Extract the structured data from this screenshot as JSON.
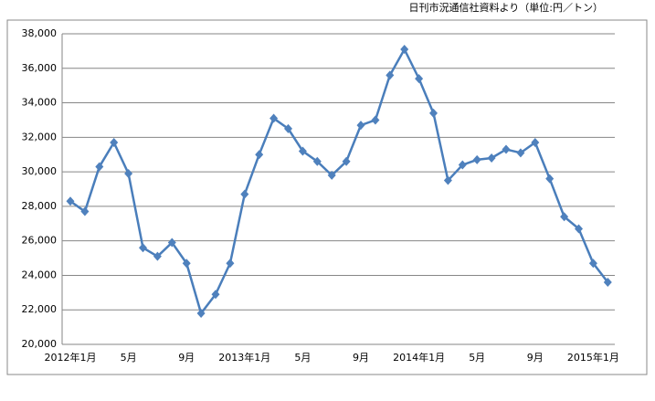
{
  "source_note": "日刊市況通信社資料より（単位:円／トン）",
  "chart_data": {
    "type": "line",
    "color": "#4a7ebb",
    "grid": true,
    "categories": [
      "2012年1月",
      null,
      null,
      null,
      "5月",
      null,
      null,
      null,
      "9月",
      null,
      null,
      null,
      "2013年1月",
      null,
      null,
      null,
      "5月",
      null,
      null,
      null,
      "9月",
      null,
      null,
      null,
      "2014年1月",
      null,
      null,
      null,
      "5月",
      null,
      null,
      null,
      "9月",
      null,
      null,
      null,
      "2015年1月",
      null
    ],
    "values": [
      28300,
      27700,
      30300,
      31700,
      29900,
      25600,
      25100,
      25900,
      24700,
      21800,
      22900,
      24700,
      28700,
      31000,
      33100,
      32500,
      31200,
      30600,
      29800,
      30600,
      32700,
      33000,
      35600,
      37100,
      35400,
      33400,
      29500,
      30400,
      30700,
      30800,
      31300,
      31100,
      31700,
      29600,
      27400,
      26700,
      24700,
      23600
    ],
    "ylim": [
      20000,
      38000
    ],
    "yticks": [
      {
        "value": 20000,
        "label": "20,000"
      },
      {
        "value": 22000,
        "label": "22,000"
      },
      {
        "value": 24000,
        "label": "24,000"
      },
      {
        "value": 26000,
        "label": "26,000"
      },
      {
        "value": 28000,
        "label": "28,000"
      },
      {
        "value": 30000,
        "label": "30,000"
      },
      {
        "value": 32000,
        "label": "32,000"
      },
      {
        "value": 34000,
        "label": "34,000"
      },
      {
        "value": 36000,
        "label": "36,000"
      },
      {
        "value": 38000,
        "label": "38,000"
      }
    ]
  }
}
